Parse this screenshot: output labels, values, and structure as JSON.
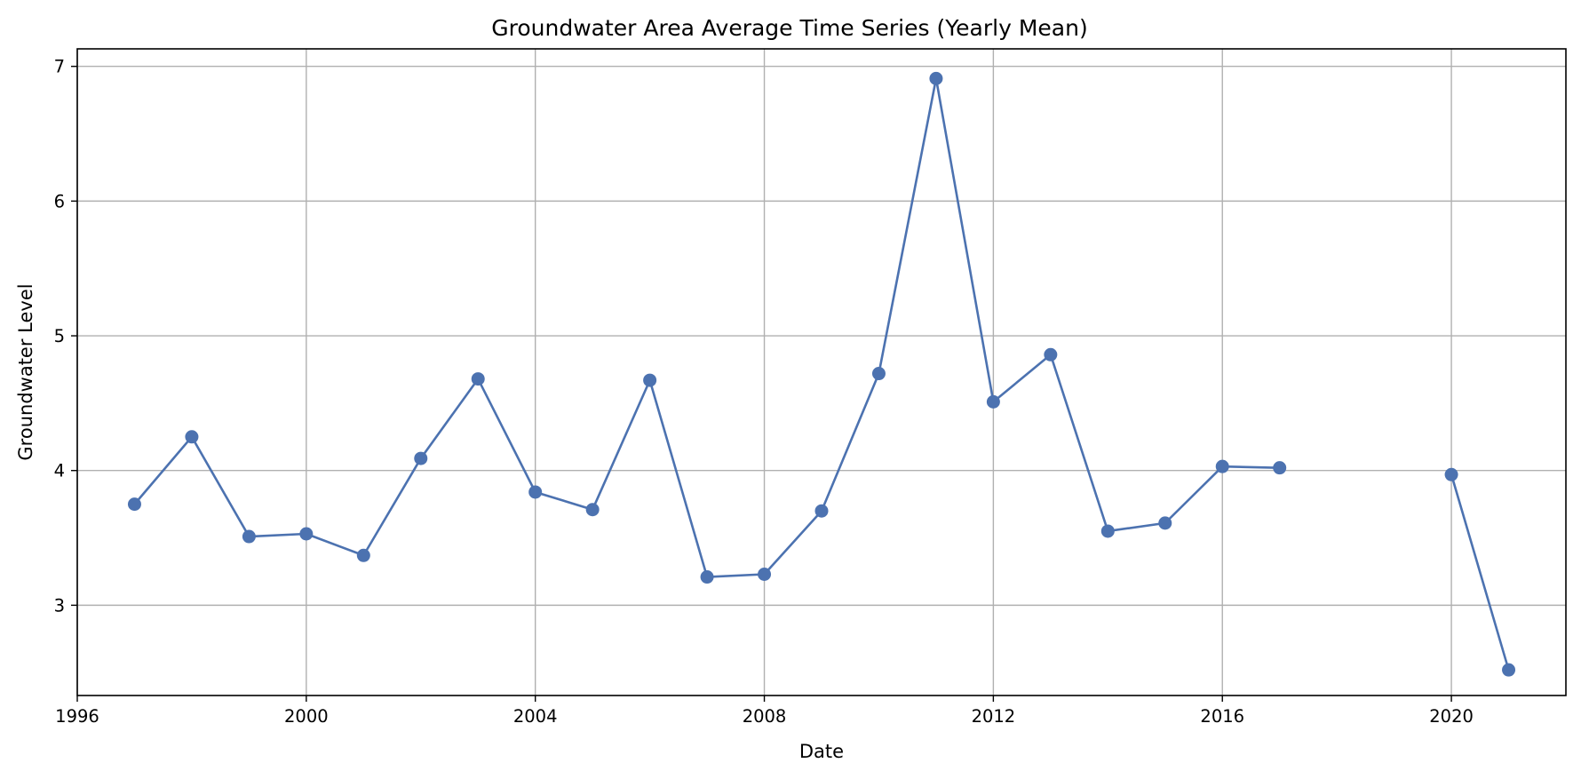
{
  "chart_data": {
    "type": "line",
    "title": "Groundwater Area Average Time Series (Yearly Mean)",
    "xlabel": "Date",
    "ylabel": "Groundwater Level",
    "xlim": [
      "1996",
      "2022"
    ],
    "ylim": [
      2.33,
      7.13
    ],
    "x_ticks": [
      "1996",
      "2000",
      "2004",
      "2008",
      "2012",
      "2016",
      "2020"
    ],
    "y_ticks": [
      3,
      4,
      5,
      6,
      7
    ],
    "grid": true,
    "marker": "circle",
    "line_color": "#4c72b0",
    "series": [
      {
        "segments": [
          {
            "x": [
              "1997",
              "1998",
              "1999",
              "2000",
              "2001",
              "2002",
              "2003",
              "2004",
              "2005",
              "2006",
              "2007",
              "2008",
              "2009",
              "2010",
              "2011",
              "2012",
              "2013",
              "2014",
              "2015",
              "2016",
              "2017"
            ],
            "values": [
              3.75,
              4.25,
              3.51,
              3.53,
              3.37,
              4.09,
              4.68,
              3.84,
              3.71,
              4.67,
              3.21,
              3.23,
              3.7,
              4.72,
              6.91,
              4.51,
              4.86,
              3.55,
              3.61,
              4.03,
              4.02
            ]
          },
          {
            "x": [
              "2020",
              "2021"
            ],
            "values": [
              3.97,
              2.52
            ]
          }
        ]
      }
    ]
  }
}
